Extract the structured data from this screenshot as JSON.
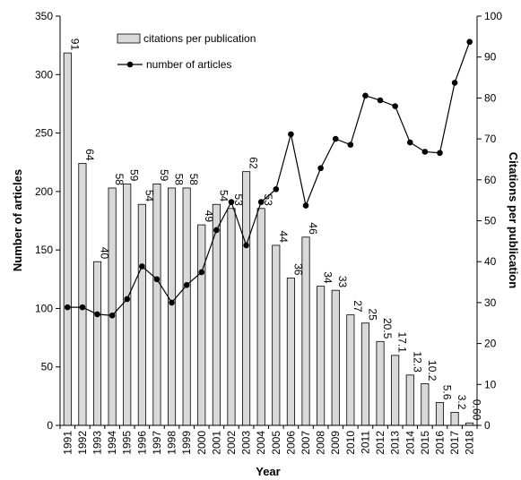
{
  "chart_data": {
    "type": "bar+line",
    "title": "",
    "categories": [
      "1991",
      "1992",
      "1993",
      "1994",
      "1995",
      "1996",
      "1997",
      "1998",
      "1999",
      "2000",
      "2001",
      "2002",
      "2003",
      "2004",
      "2005",
      "2006",
      "2007",
      "2008",
      "2009",
      "2010",
      "2011",
      "2012",
      "2013",
      "2014",
      "2015",
      "2016",
      "2017",
      "2018"
    ],
    "xlabel": "Year",
    "ylabel_left": "Number of articles",
    "ylabel_right": "Citations per publication",
    "ylim_left": [
      0,
      350
    ],
    "ylim_right": [
      0,
      100
    ],
    "yticks_left": [
      "0",
      "50",
      "100",
      "150",
      "200",
      "250",
      "300",
      "350"
    ],
    "yticks_right": [
      "0",
      "10",
      "20",
      "30",
      "40",
      "50",
      "60",
      "70",
      "80",
      "90",
      "100"
    ],
    "grid": false,
    "legend_position": "top-center",
    "series": [
      {
        "name": "citations per publication",
        "type": "bar",
        "axis": "right",
        "color": "#d9d9d9",
        "values": [
          91,
          64,
          40,
          58,
          59,
          54,
          59,
          58,
          58,
          49,
          54,
          53,
          62,
          53,
          44,
          36,
          46,
          34,
          33,
          27,
          25,
          20.5,
          17.1,
          12.3,
          10.2,
          5.6,
          3.2,
          0.6
        ],
        "labels": [
          "91",
          "64",
          "40",
          "58",
          "59",
          "54",
          "59",
          "58",
          "58",
          "49",
          "54",
          "53",
          "62",
          "53",
          "44",
          "36",
          "46",
          "34",
          "33",
          "27",
          "25",
          "20.5",
          "17.1",
          "12.3",
          "10.2",
          "5.6",
          "3.2",
          "0.60"
        ]
      },
      {
        "name": "number of articles",
        "type": "line",
        "axis": "left",
        "color": "#000000",
        "values": [
          101,
          101,
          95,
          94,
          108,
          136,
          125,
          105,
          120,
          131,
          167,
          191,
          154,
          191,
          202,
          249,
          188,
          220,
          245,
          240,
          282,
          278,
          273,
          242,
          234,
          233,
          293,
          328
        ]
      }
    ]
  }
}
